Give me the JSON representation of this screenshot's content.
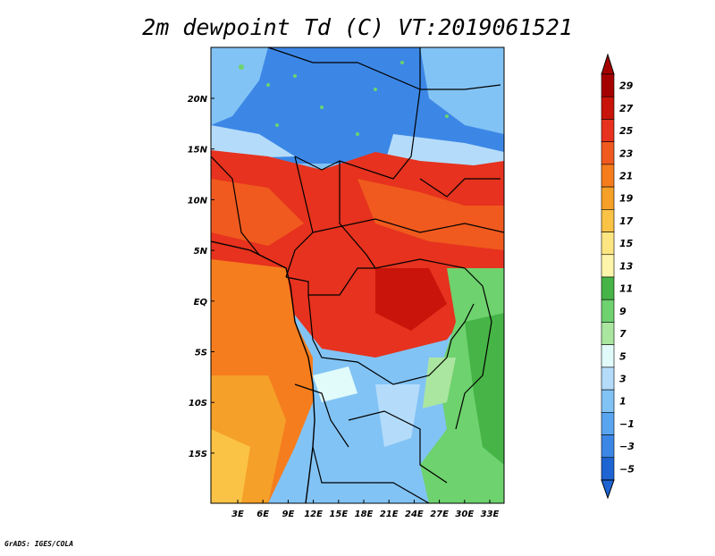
{
  "title": "2m dewpoint Td (C) VT:2019061521",
  "credit": "GrADS: IGES/COLA",
  "lat_labels": [
    "20N",
    "15N",
    "10N",
    "5N",
    "EQ",
    "5S",
    "10S",
    "15S"
  ],
  "lon_labels": [
    "3E",
    "6E",
    "9E",
    "12E",
    "15E",
    "18E",
    "21E",
    "24E",
    "27E",
    "30E",
    "33E"
  ],
  "colorbar": {
    "labels": [
      "29",
      "27",
      "25",
      "23",
      "21",
      "19",
      "17",
      "15",
      "13",
      "11",
      "9",
      "7",
      "5",
      "3",
      "1",
      "−1",
      "−3",
      "−5"
    ],
    "colors": [
      "#a50000",
      "#c8140a",
      "#e6321e",
      "#f05a1e",
      "#f57d1e",
      "#f5a028",
      "#fac346",
      "#fde682",
      "#fff5aa",
      "#46b446",
      "#6ed26e",
      "#aae6a0",
      "#e1fafa",
      "#b4dcfa",
      "#82c3f5",
      "#5aa5f0",
      "#3c87e6",
      "#1e64d2"
    ]
  },
  "regions": {
    "north_dry": "#3c87e6",
    "sahel_humid": "#e6321e",
    "congo_basin": "#e6321e",
    "gulf_coast": "#f57d1e",
    "southwest": "#f5a028",
    "southern_dry": "#82c3f5",
    "east_green": "#6ed26e"
  }
}
